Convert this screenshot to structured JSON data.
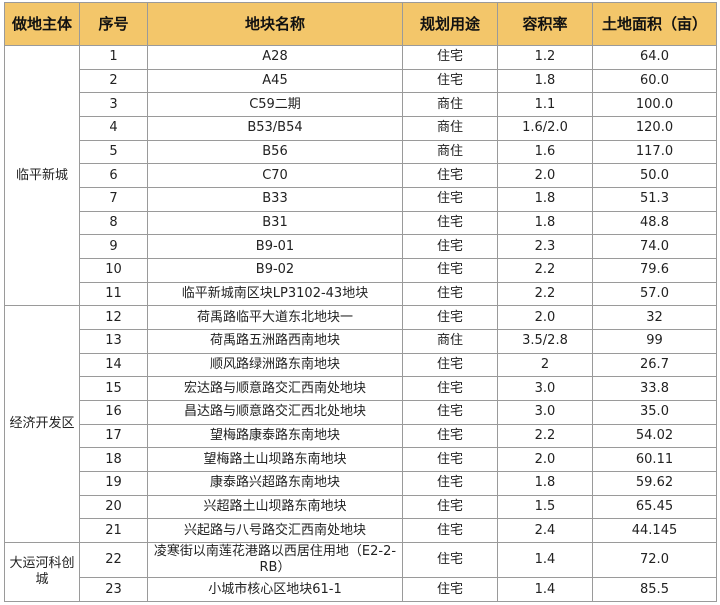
{
  "headers": [
    "做地主体",
    "序号",
    "地块名称",
    "规划用途",
    "容积率",
    "土地面积（亩）"
  ],
  "groups": [
    {
      "owner": "临平新城",
      "rows": [
        [
          "1",
          "A28",
          "住宅",
          "1.2",
          "64.0"
        ],
        [
          "2",
          "A45",
          "住宅",
          "1.8",
          "60.0"
        ],
        [
          "3",
          "C59二期",
          "商住",
          "1.1",
          "100.0"
        ],
        [
          "4",
          "B53/B54",
          "商住",
          "1.6/2.0",
          "120.0"
        ],
        [
          "5",
          "B56",
          "商住",
          "1.6",
          "117.0"
        ],
        [
          "6",
          "C70",
          "住宅",
          "2.0",
          "50.0"
        ],
        [
          "7",
          "B33",
          "住宅",
          "1.8",
          "51.3"
        ],
        [
          "8",
          "B31",
          "住宅",
          "1.8",
          "48.8"
        ],
        [
          "9",
          "B9-01",
          "住宅",
          "2.3",
          "74.0"
        ],
        [
          "10",
          "B9-02",
          "住宅",
          "2.2",
          "79.6"
        ],
        [
          "11",
          "临平新城南区块LP3102-43地块",
          "住宅",
          "2.2",
          "57.0"
        ]
      ]
    },
    {
      "owner": "经济开发区",
      "rows": [
        [
          "12",
          "荷禹路临平大道东北地块一",
          "住宅",
          "2.0",
          "32"
        ],
        [
          "13",
          "荷禹路五洲路西南地块",
          "商住",
          "3.5/2.8",
          "99"
        ],
        [
          "14",
          "顺风路绿洲路东南地块",
          "住宅",
          "2",
          "26.7"
        ],
        [
          "15",
          "宏达路与顺意路交汇西南处地块",
          "住宅",
          "3.0",
          "33.8"
        ],
        [
          "16",
          "昌达路与顺意路交汇西北处地块",
          "住宅",
          "3.0",
          "35.0"
        ],
        [
          "17",
          "望梅路康泰路东南地块",
          "住宅",
          "2.2",
          "54.02"
        ],
        [
          "18",
          "望梅路土山坝路东南地块",
          "住宅",
          "2.0",
          "60.11"
        ],
        [
          "19",
          "康泰路兴超路东南地块",
          "住宅",
          "1.8",
          "59.62"
        ],
        [
          "20",
          "兴超路土山坝路东南地块",
          "住宅",
          "1.5",
          "65.45"
        ],
        [
          "21",
          "兴起路与八号路交汇西南处地块",
          "住宅",
          "2.4",
          "44.145"
        ]
      ]
    },
    {
      "owner": "大运河科创城",
      "rows": [
        [
          "22",
          "凌寒街以南莲花港路以西居住用地（E2-2-RB）",
          "住宅",
          "1.4",
          "72.0"
        ],
        [
          "23",
          "小城市核心区地块61-1",
          "住宅",
          "1.4",
          "85.5"
        ]
      ]
    }
  ]
}
